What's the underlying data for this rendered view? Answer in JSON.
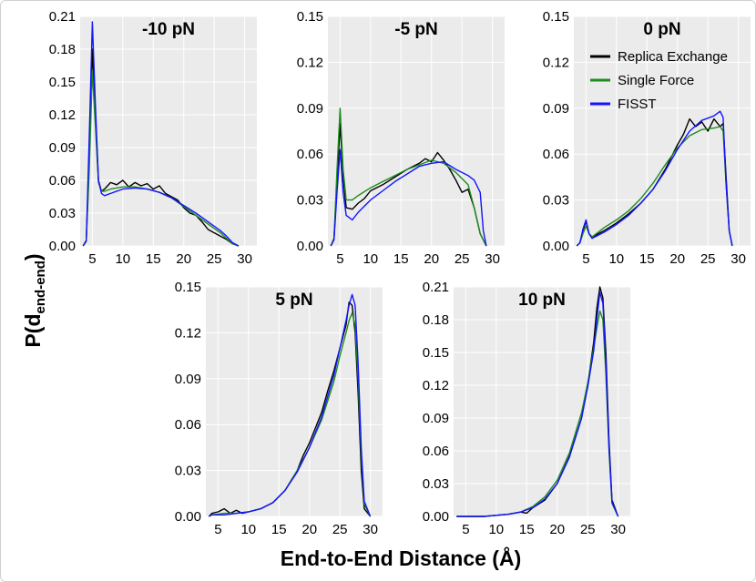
{
  "figure": {
    "ylabel_main": "P(d",
    "ylabel_sub": "end-end",
    "ylabel_close": ")",
    "xlabel": "End-to-End Distance (Å)"
  },
  "legend": {
    "entries": [
      {
        "label": "Replica Exchange",
        "color": "#000000"
      },
      {
        "label": "Single Force",
        "color": "#1e8c1e"
      },
      {
        "label": "FISST",
        "color": "#1414ff"
      }
    ]
  },
  "chart_data": [
    {
      "type": "line",
      "title": "-10 pN",
      "xlim": [
        3,
        32
      ],
      "ylim": [
        0,
        0.21
      ],
      "xticks": [
        5,
        10,
        15,
        20,
        25,
        30
      ],
      "yticks": [
        "0.00",
        "0.03",
        "0.06",
        "0.09",
        "0.12",
        "0.15",
        "0.18",
        "0.21"
      ],
      "series": [
        {
          "name": "Replica Exchange",
          "x": [
            3.5,
            4,
            4.5,
            5,
            5.5,
            6,
            6.5,
            7,
            8,
            9,
            10,
            11,
            12,
            13,
            14,
            15,
            16,
            17,
            18,
            19,
            20,
            21,
            22,
            23,
            24,
            25,
            26,
            27,
            28,
            29
          ],
          "y": [
            0,
            0.005,
            0.08,
            0.18,
            0.12,
            0.06,
            0.05,
            0.052,
            0.058,
            0.056,
            0.06,
            0.054,
            0.058,
            0.055,
            0.057,
            0.052,
            0.055,
            0.048,
            0.045,
            0.042,
            0.035,
            0.03,
            0.028,
            0.022,
            0.015,
            0.012,
            0.009,
            0.006,
            0.002,
            0
          ]
        },
        {
          "name": "Single Force",
          "x": [
            3.5,
            4,
            4.5,
            5,
            5.5,
            6,
            6.5,
            7,
            8,
            10,
            12,
            14,
            16,
            18,
            20,
            22,
            24,
            26,
            27,
            28,
            29
          ],
          "y": [
            0,
            0.004,
            0.07,
            0.16,
            0.11,
            0.058,
            0.05,
            0.05,
            0.052,
            0.054,
            0.054,
            0.052,
            0.049,
            0.044,
            0.036,
            0.028,
            0.02,
            0.012,
            0.007,
            0.002,
            0
          ]
        },
        {
          "name": "FISST",
          "x": [
            3.5,
            4,
            4.5,
            5,
            5.5,
            6,
            6.5,
            7,
            8,
            10,
            12,
            14,
            16,
            18,
            20,
            22,
            24,
            26,
            27,
            28,
            29
          ],
          "y": [
            0,
            0.005,
            0.1,
            0.205,
            0.13,
            0.06,
            0.048,
            0.046,
            0.048,
            0.052,
            0.053,
            0.052,
            0.049,
            0.044,
            0.037,
            0.03,
            0.022,
            0.014,
            0.009,
            0.003,
            0
          ]
        }
      ]
    },
    {
      "type": "line",
      "title": "-5 pN",
      "xlim": [
        3,
        32
      ],
      "ylim": [
        0,
        0.15
      ],
      "xticks": [
        5,
        10,
        15,
        20,
        25,
        30
      ],
      "yticks": [
        "0.00",
        "0.03",
        "0.06",
        "0.09",
        "0.12",
        "0.15"
      ],
      "series": [
        {
          "name": "Replica Exchange",
          "x": [
            3.5,
            4,
            4.5,
            5,
            5.5,
            6,
            7,
            8,
            9,
            10,
            12,
            14,
            16,
            18,
            19,
            20,
            21,
            22,
            23,
            24,
            25,
            26,
            27,
            28,
            29
          ],
          "y": [
            0,
            0.005,
            0.04,
            0.08,
            0.045,
            0.025,
            0.024,
            0.028,
            0.031,
            0.036,
            0.04,
            0.045,
            0.05,
            0.054,
            0.057,
            0.055,
            0.061,
            0.056,
            0.05,
            0.043,
            0.035,
            0.037,
            0.025,
            0.008,
            0
          ]
        },
        {
          "name": "Single Force",
          "x": [
            3.5,
            4,
            4.5,
            5,
            5.5,
            6,
            7,
            8,
            10,
            12,
            14,
            16,
            18,
            20,
            22,
            24,
            26,
            27,
            28,
            29
          ],
          "y": [
            0,
            0.005,
            0.05,
            0.09,
            0.05,
            0.03,
            0.03,
            0.033,
            0.038,
            0.042,
            0.046,
            0.05,
            0.053,
            0.056,
            0.054,
            0.048,
            0.04,
            0.025,
            0.008,
            0
          ]
        },
        {
          "name": "FISST",
          "x": [
            3.5,
            4,
            4.5,
            5,
            5.5,
            6,
            7,
            8,
            10,
            12,
            14,
            16,
            18,
            20,
            22,
            24,
            26,
            27,
            28,
            28.5,
            29
          ],
          "y": [
            0,
            0.004,
            0.035,
            0.063,
            0.035,
            0.02,
            0.017,
            0.022,
            0.03,
            0.036,
            0.042,
            0.047,
            0.052,
            0.054,
            0.055,
            0.05,
            0.046,
            0.043,
            0.035,
            0.01,
            0
          ]
        }
      ]
    },
    {
      "type": "line",
      "title": "0 pN",
      "xlim": [
        3,
        32
      ],
      "ylim": [
        0,
        0.15
      ],
      "xticks": [
        5,
        10,
        15,
        20,
        25,
        30
      ],
      "yticks": [
        "0.00",
        "0.03",
        "0.06",
        "0.09",
        "0.12",
        "0.15"
      ],
      "series": [
        {
          "name": "Replica Exchange",
          "x": [
            3.5,
            4,
            4.5,
            5,
            5.5,
            6,
            7,
            8,
            10,
            12,
            14,
            16,
            18,
            20,
            21,
            22,
            23,
            24,
            25,
            26,
            27,
            27.5,
            28,
            28.5,
            29
          ],
          "y": [
            0,
            0.002,
            0.01,
            0.016,
            0.008,
            0.005,
            0.008,
            0.01,
            0.015,
            0.021,
            0.028,
            0.037,
            0.05,
            0.066,
            0.073,
            0.083,
            0.078,
            0.081,
            0.075,
            0.083,
            0.078,
            0.08,
            0.045,
            0.01,
            0
          ]
        },
        {
          "name": "Single Force",
          "x": [
            3.5,
            4,
            4.5,
            5,
            5.5,
            6,
            7,
            8,
            10,
            12,
            14,
            16,
            18,
            20,
            22,
            24,
            26,
            27,
            27.5,
            28,
            28.5,
            29
          ],
          "y": [
            0,
            0.002,
            0.008,
            0.013,
            0.008,
            0.006,
            0.009,
            0.012,
            0.017,
            0.023,
            0.031,
            0.041,
            0.053,
            0.064,
            0.072,
            0.076,
            0.077,
            0.078,
            0.075,
            0.04,
            0.01,
            0
          ]
        },
        {
          "name": "FISST",
          "x": [
            3.5,
            4,
            4.5,
            5,
            5.5,
            6,
            7,
            8,
            10,
            12,
            14,
            16,
            18,
            20,
            22,
            24,
            26,
            27,
            27.5,
            28,
            28.5,
            29
          ],
          "y": [
            0,
            0.002,
            0.011,
            0.017,
            0.008,
            0.005,
            0.007,
            0.009,
            0.014,
            0.02,
            0.028,
            0.037,
            0.049,
            0.063,
            0.075,
            0.082,
            0.085,
            0.088,
            0.084,
            0.04,
            0.01,
            0
          ]
        }
      ]
    },
    {
      "type": "line",
      "title": "5 pN",
      "xlim": [
        3,
        32
      ],
      "ylim": [
        0,
        0.15
      ],
      "xticks": [
        5,
        10,
        15,
        20,
        25,
        30
      ],
      "yticks": [
        "0.00",
        "0.03",
        "0.06",
        "0.09",
        "0.12",
        "0.15"
      ],
      "series": [
        {
          "name": "Replica Exchange",
          "x": [
            3.5,
            4,
            5,
            6,
            7,
            8,
            9,
            10,
            12,
            14,
            16,
            18,
            19,
            20,
            21,
            22,
            23,
            24,
            25,
            26,
            26.5,
            27,
            27.5,
            28,
            28.5,
            29,
            30
          ],
          "y": [
            0,
            0.002,
            0.003,
            0.005,
            0.002,
            0.004,
            0.002,
            0.003,
            0.005,
            0.009,
            0.017,
            0.03,
            0.04,
            0.048,
            0.058,
            0.068,
            0.082,
            0.095,
            0.11,
            0.125,
            0.14,
            0.138,
            0.12,
            0.08,
            0.03,
            0.005,
            0
          ]
        },
        {
          "name": "Single Force",
          "x": [
            3.5,
            4,
            6,
            8,
            10,
            12,
            14,
            16,
            18,
            20,
            22,
            24,
            25,
            26,
            26.5,
            27,
            27.5,
            28,
            28.5,
            29,
            30
          ],
          "y": [
            0,
            0.001,
            0.002,
            0.002,
            0.003,
            0.005,
            0.009,
            0.017,
            0.03,
            0.045,
            0.063,
            0.088,
            0.105,
            0.12,
            0.128,
            0.133,
            0.125,
            0.09,
            0.04,
            0.008,
            0
          ]
        },
        {
          "name": "FISST",
          "x": [
            3.5,
            4,
            6,
            8,
            10,
            12,
            14,
            16,
            18,
            20,
            22,
            24,
            25,
            26,
            26.5,
            27,
            27.5,
            28,
            28.5,
            29,
            30
          ],
          "y": [
            0,
            0.001,
            0.001,
            0.002,
            0.003,
            0.005,
            0.009,
            0.017,
            0.029,
            0.045,
            0.065,
            0.092,
            0.11,
            0.128,
            0.138,
            0.145,
            0.138,
            0.1,
            0.045,
            0.01,
            0
          ]
        }
      ]
    },
    {
      "type": "line",
      "title": "10 pN",
      "xlim": [
        3,
        32
      ],
      "ylim": [
        0,
        0.21
      ],
      "xticks": [
        5,
        10,
        15,
        20,
        25,
        30
      ],
      "yticks": [
        "0.00",
        "0.03",
        "0.06",
        "0.09",
        "0.12",
        "0.15",
        "0.18",
        "0.21"
      ],
      "series": [
        {
          "name": "Replica Exchange",
          "x": [
            3.5,
            6,
            8,
            10,
            12,
            14,
            15,
            16,
            18,
            20,
            22,
            24,
            25,
            26,
            26.5,
            27,
            27.5,
            28,
            28.5,
            29,
            30
          ],
          "y": [
            0,
            0,
            0,
            0.001,
            0.002,
            0.004,
            0.003,
            0.008,
            0.015,
            0.03,
            0.055,
            0.09,
            0.12,
            0.16,
            0.19,
            0.21,
            0.2,
            0.15,
            0.07,
            0.015,
            0
          ]
        },
        {
          "name": "Single Force",
          "x": [
            3.5,
            6,
            8,
            10,
            12,
            14,
            16,
            18,
            20,
            22,
            24,
            25,
            26,
            26.5,
            27,
            27.5,
            28,
            28.5,
            29,
            30
          ],
          "y": [
            0,
            0,
            0,
            0.001,
            0.002,
            0.004,
            0.009,
            0.018,
            0.033,
            0.058,
            0.095,
            0.122,
            0.155,
            0.172,
            0.188,
            0.18,
            0.13,
            0.06,
            0.012,
            0
          ]
        },
        {
          "name": "FISST",
          "x": [
            3.5,
            6,
            8,
            10,
            12,
            14,
            16,
            18,
            20,
            22,
            24,
            25,
            26,
            26.5,
            27,
            27.5,
            28,
            28.5,
            29,
            30
          ],
          "y": [
            0,
            0,
            0,
            0.001,
            0.002,
            0.004,
            0.008,
            0.016,
            0.03,
            0.054,
            0.09,
            0.118,
            0.152,
            0.18,
            0.205,
            0.195,
            0.14,
            0.065,
            0.013,
            0
          ]
        }
      ]
    }
  ]
}
